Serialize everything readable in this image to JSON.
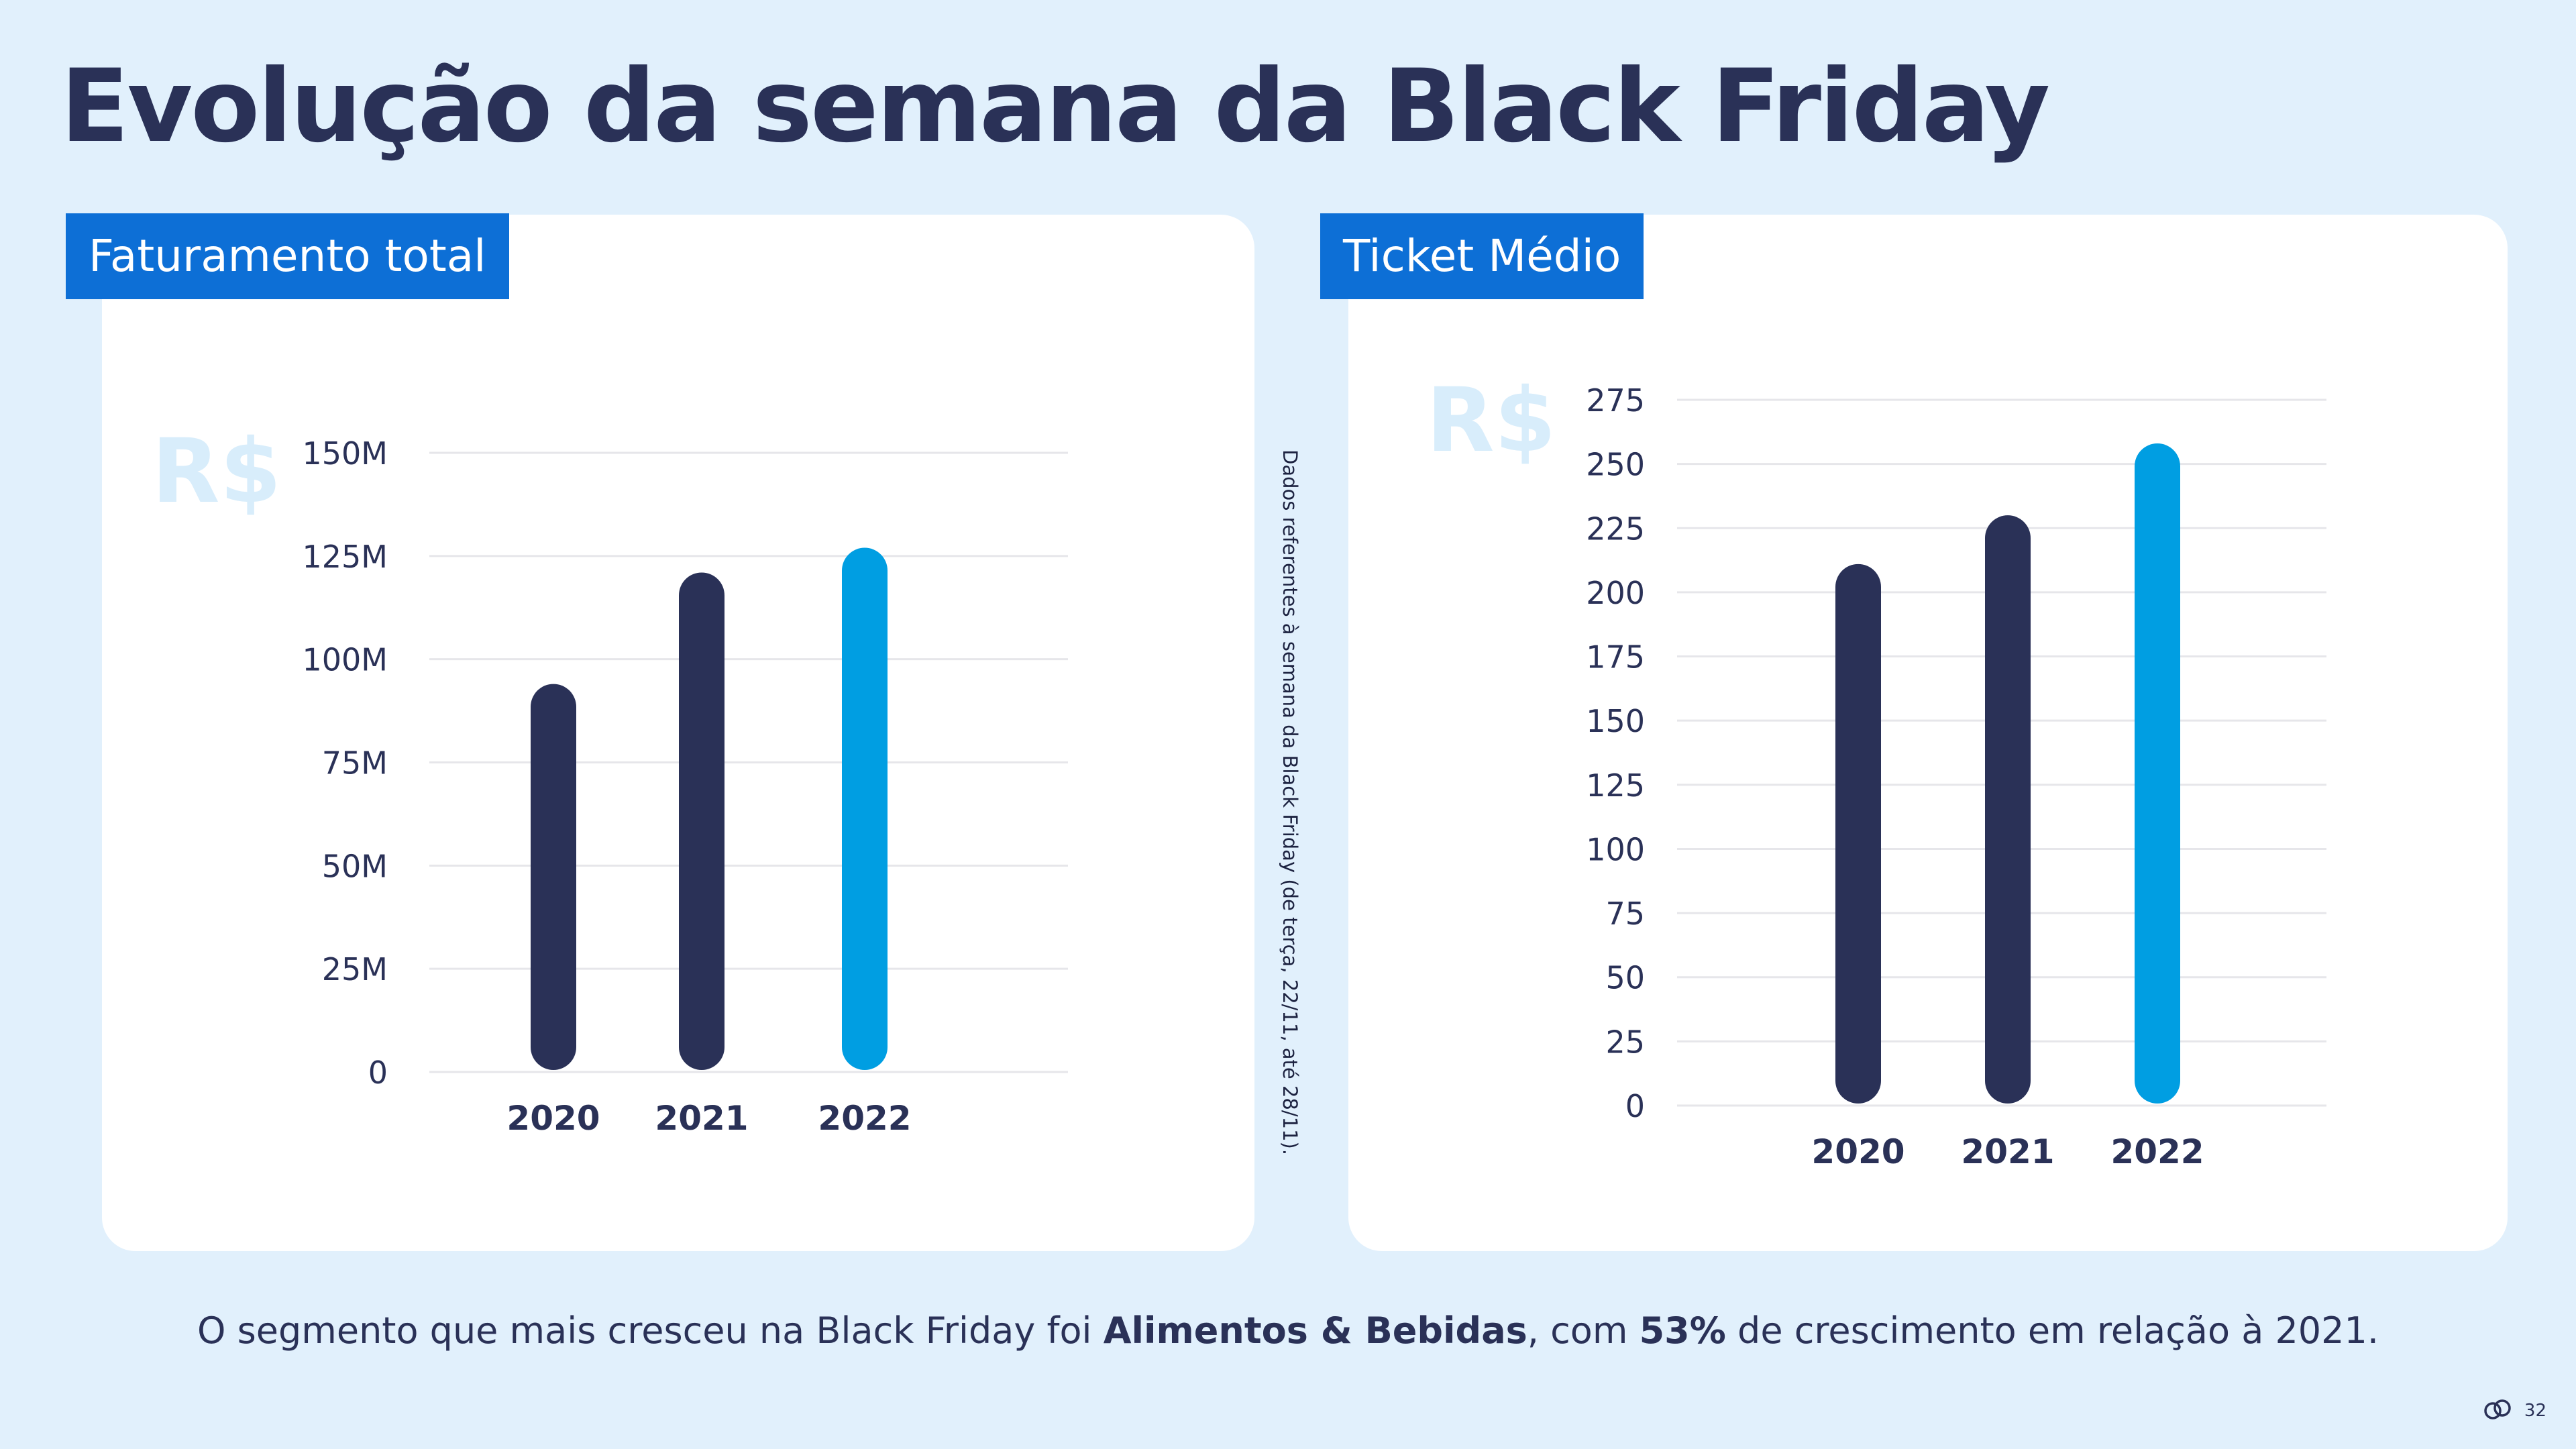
{
  "page": {
    "title": "Evolução da semana da Black Friday",
    "side_note": "Dados referentes à semana da Black Friday (de terça, 22/11, até 28/11).",
    "footer": {
      "text_1": "O segmento que mais cresceu na Black Friday foi ",
      "bold_1": "Alimentos & Bebidas",
      "text_2": ", com ",
      "bold_2": "53%",
      "text_3": " de crescimento em relação à 2021."
    },
    "page_number": "32",
    "brand_icon": "cloud-logo-icon"
  },
  "colors": {
    "background": "#e1f0fc",
    "card": "#ffffff",
    "label_bg": "#0d6fd6",
    "text_dark": "#2a3157",
    "bar_past": "#2a3157",
    "bar_current": "#009ee2",
    "grid": "#e6e6ea",
    "currency_mark": "#d8edfb"
  },
  "chart_data": [
    {
      "type": "bar",
      "title": "Faturamento total",
      "currency_mark": "R$",
      "categories": [
        "2020",
        "2021",
        "2022"
      ],
      "values": [
        94000000,
        121000000,
        127000000
      ],
      "ylim": [
        0,
        150000000
      ],
      "yticks": [
        0,
        25000000,
        50000000,
        75000000,
        100000000,
        125000000,
        150000000
      ],
      "ytick_labels": [
        "0",
        "25M",
        "50M",
        "75M",
        "100M",
        "125M",
        "150M"
      ],
      "xlabel": "",
      "ylabel": "",
      "grid": true,
      "legend": "none",
      "highlight_index": 2
    },
    {
      "type": "bar",
      "title": "Ticket Médio",
      "currency_mark": "R$",
      "categories": [
        "2020",
        "2021",
        "2022"
      ],
      "values": [
        211,
        230,
        258
      ],
      "ylim": [
        0,
        275
      ],
      "yticks": [
        0,
        25,
        50,
        75,
        100,
        125,
        150,
        175,
        200,
        225,
        250,
        275
      ],
      "ytick_labels": [
        "0",
        "25",
        "50",
        "75",
        "100",
        "125",
        "150",
        "175",
        "200",
        "225",
        "250",
        "275"
      ],
      "xlabel": "",
      "ylabel": "",
      "grid": true,
      "legend": "none",
      "highlight_index": 2
    }
  ]
}
